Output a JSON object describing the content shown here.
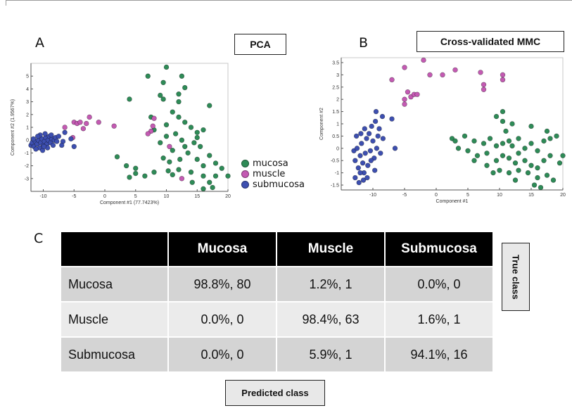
{
  "panels": {
    "a": {
      "letter": "A",
      "title": "PCA"
    },
    "b": {
      "letter": "B",
      "title": "Cross-validated MMC"
    },
    "c": {
      "letter": "C"
    }
  },
  "legend": [
    {
      "label": "mucosa",
      "color": "#2e8b57"
    },
    {
      "label": "muscle",
      "color": "#c45ab3"
    },
    {
      "label": "submucosa",
      "color": "#3d4fb0"
    }
  ],
  "colors": {
    "mucosa": "#2e8b57",
    "muscle": "#c45ab3",
    "submucosa": "#3d4fb0"
  },
  "chart_data": [
    {
      "type": "scatter",
      "title": "PCA",
      "xlabel": "Component #1 (77.7423%)",
      "ylabel": "Component #2 (1.9567%)",
      "xlim": [
        -12,
        20
      ],
      "ylim": [
        -4,
        6
      ],
      "xticks": [
        -10,
        -5,
        0,
        5,
        10,
        15,
        20
      ],
      "yticks": [
        -3,
        -2,
        -1,
        0,
        1,
        2,
        3,
        4,
        5
      ],
      "series": [
        {
          "name": "mucosa",
          "points": [
            [
              7,
              5
            ],
            [
              10,
              5.7
            ],
            [
              9.5,
              4.5
            ],
            [
              12.5,
              5
            ],
            [
              9,
              3.5
            ],
            [
              9.5,
              3.2
            ],
            [
              12,
              3.6
            ],
            [
              13,
              4.1
            ],
            [
              12,
              3
            ],
            [
              4,
              3.2
            ],
            [
              7.5,
              1.8
            ],
            [
              10,
              1.2
            ],
            [
              11,
              2.2
            ],
            [
              12,
              1.8
            ],
            [
              13,
              1.4
            ],
            [
              14,
              1
            ],
            [
              15,
              0.6
            ],
            [
              16,
              0.8
            ],
            [
              17,
              2.7
            ],
            [
              10,
              0.3
            ],
            [
              11.5,
              0.5
            ],
            [
              12.5,
              0
            ],
            [
              14.5,
              -0.2
            ],
            [
              15,
              0.2
            ],
            [
              15.5,
              -0.5
            ],
            [
              13,
              -0.5
            ],
            [
              8,
              0.8
            ],
            [
              9,
              -0.2
            ],
            [
              11,
              -0.8
            ],
            [
              13.5,
              -1
            ],
            [
              15,
              -1.5
            ],
            [
              17,
              -1.2
            ],
            [
              18,
              -1.8
            ],
            [
              16,
              -2
            ],
            [
              19,
              -2.2
            ],
            [
              2,
              -1.3
            ],
            [
              3.5,
              -2
            ],
            [
              5,
              -2.6
            ],
            [
              6.5,
              -2.8
            ],
            [
              5,
              -2.2
            ],
            [
              8,
              -2.5
            ],
            [
              11,
              -2.7
            ],
            [
              12,
              -2.3
            ],
            [
              14,
              -2.5
            ],
            [
              16,
              -2.8
            ],
            [
              17,
              -3.3
            ],
            [
              17.5,
              -3.7
            ],
            [
              16,
              -3.8
            ],
            [
              18,
              -2.8
            ],
            [
              20,
              -2.8
            ],
            [
              4,
              -2.9
            ],
            [
              9.5,
              -1.4
            ],
            [
              10.5,
              -1.7
            ],
            [
              14.2,
              -3.3
            ],
            [
              12.2,
              -1.5
            ],
            [
              10.3,
              -2.4
            ]
          ]
        },
        {
          "name": "muscle",
          "points": [
            [
              -5,
              1.4
            ],
            [
              -4.5,
              1.3
            ],
            [
              -4,
              1.4
            ],
            [
              -3,
              1.3
            ],
            [
              -3.5,
              0.9
            ],
            [
              -2.5,
              1.8
            ],
            [
              -1,
              1.4
            ],
            [
              1.5,
              1.1
            ],
            [
              -6.5,
              1
            ],
            [
              -5.2,
              0.2
            ],
            [
              7.5,
              0.7
            ],
            [
              8,
              1.7
            ],
            [
              7.8,
              1.1
            ],
            [
              7,
              0.5
            ],
            [
              10.5,
              -0.5
            ],
            [
              12.5,
              -3
            ]
          ]
        },
        {
          "name": "submucosa",
          "points": [
            [
              -12,
              -0.4
            ],
            [
              -11.8,
              -0.2
            ],
            [
              -11.5,
              -0.5
            ],
            [
              -11.3,
              -0.1
            ],
            [
              -11,
              -0.3
            ],
            [
              -10.8,
              0
            ],
            [
              -10.6,
              -0.6
            ],
            [
              -10.4,
              -0.2
            ],
            [
              -10.2,
              0.1
            ],
            [
              -10,
              -0.4
            ],
            [
              -9.8,
              -0.1
            ],
            [
              -9.6,
              0.2
            ],
            [
              -9.4,
              -0.3
            ],
            [
              -9.2,
              0
            ],
            [
              -9,
              0.3
            ],
            [
              -8.8,
              -0.2
            ],
            [
              -8.6,
              0.1
            ],
            [
              -8.4,
              -0.4
            ],
            [
              -8.2,
              0
            ],
            [
              -8,
              0.2
            ],
            [
              -7.8,
              -0.1
            ],
            [
              -10.5,
              0.4
            ],
            [
              -9.7,
              0.5
            ],
            [
              -11.2,
              -0.7
            ],
            [
              -10.1,
              -0.8
            ],
            [
              -9.3,
              -0.6
            ],
            [
              -8.7,
              0.4
            ],
            [
              -7.5,
              0.3
            ],
            [
              -6.8,
              -0.1
            ],
            [
              -6.5,
              0.6
            ],
            [
              -5.5,
              0.1
            ],
            [
              -5,
              -0.5
            ],
            [
              -7,
              -0.4
            ],
            [
              -11.6,
              0.1
            ],
            [
              -10.9,
              0.3
            ],
            [
              -9.9,
              -0.5
            ]
          ]
        }
      ]
    },
    {
      "type": "scatter",
      "title": "Cross-validated MMC",
      "xlabel": "Component #1",
      "ylabel": "Component #2",
      "xlim": [
        -15,
        20
      ],
      "ylim": [
        -1.7,
        3.7
      ],
      "xticks": [
        -10,
        -5,
        0,
        5,
        10,
        15,
        20
      ],
      "yticks": [
        -1.5,
        -1,
        -0.5,
        0,
        0.5,
        1,
        1.5,
        2,
        2.5,
        3,
        3.5
      ],
      "series": [
        {
          "name": "mucosa",
          "points": [
            [
              10.5,
              1.5
            ],
            [
              9.5,
              1.3
            ],
            [
              10.5,
              1.1
            ],
            [
              12,
              1
            ],
            [
              11,
              0.7
            ],
            [
              15,
              0.9
            ],
            [
              17.5,
              0.7
            ],
            [
              18,
              0.4
            ],
            [
              19,
              0.5
            ],
            [
              2.5,
              0.4
            ],
            [
              4.5,
              0.5
            ],
            [
              6,
              0.3
            ],
            [
              7.5,
              0.2
            ],
            [
              8.5,
              0.4
            ],
            [
              9.5,
              0.1
            ],
            [
              10.5,
              0.2
            ],
            [
              11.5,
              0.3
            ],
            [
              12,
              0.1
            ],
            [
              13,
              0.4
            ],
            [
              14,
              0
            ],
            [
              15,
              0.2
            ],
            [
              16,
              -0.1
            ],
            [
              17,
              0.3
            ],
            [
              3.5,
              0
            ],
            [
              5,
              -0.1
            ],
            [
              6.5,
              -0.3
            ],
            [
              8,
              -0.2
            ],
            [
              9.5,
              -0.5
            ],
            [
              10.5,
              -0.3
            ],
            [
              11.5,
              -0.4
            ],
            [
              12.5,
              -0.6
            ],
            [
              13,
              -0.2
            ],
            [
              14,
              -0.5
            ],
            [
              15,
              -0.7
            ],
            [
              16,
              -0.8
            ],
            [
              17,
              -0.5
            ],
            [
              18,
              -0.3
            ],
            [
              19.5,
              -0.6
            ],
            [
              20,
              -0.3
            ],
            [
              8,
              -0.7
            ],
            [
              10,
              -0.9
            ],
            [
              11.5,
              -1
            ],
            [
              13,
              -0.9
            ],
            [
              14.5,
              -1
            ],
            [
              16,
              -1.2
            ],
            [
              17.5,
              -1.1
            ],
            [
              18.5,
              -1.3
            ],
            [
              12.5,
              -1.3
            ],
            [
              15.5,
              -1.5
            ],
            [
              16.5,
              -1.6
            ],
            [
              9,
              -1
            ],
            [
              6,
              -0.5
            ],
            [
              3,
              0.3
            ]
          ]
        },
        {
          "name": "muscle",
          "points": [
            [
              -7,
              2.8
            ],
            [
              -5,
              3.3
            ],
            [
              -4.5,
              2.3
            ],
            [
              -4,
              2.1
            ],
            [
              -3.5,
              2.2
            ],
            [
              -3,
              2.2
            ],
            [
              -5,
              2
            ],
            [
              -5,
              1.8
            ],
            [
              -2,
              3.6
            ],
            [
              -1,
              3
            ],
            [
              1,
              3
            ],
            [
              3,
              3.2
            ],
            [
              7,
              3.1
            ],
            [
              7.5,
              2.6
            ],
            [
              7.5,
              2.4
            ],
            [
              10.5,
              3
            ],
            [
              10.5,
              2.8
            ]
          ]
        },
        {
          "name": "submucosa",
          "points": [
            [
              -13,
              -0.1
            ],
            [
              -12.8,
              -0.5
            ],
            [
              -12.5,
              0
            ],
            [
              -12.3,
              -0.8
            ],
            [
              -12,
              -0.3
            ],
            [
              -11.8,
              0.2
            ],
            [
              -11.6,
              -0.6
            ],
            [
              -11.4,
              -1
            ],
            [
              -11.2,
              -0.2
            ],
            [
              -11,
              0.4
            ],
            [
              -10.8,
              -0.7
            ],
            [
              -10.6,
              0.6
            ],
            [
              -10.4,
              -0.1
            ],
            [
              -10.2,
              0.9
            ],
            [
              -10,
              0.3
            ],
            [
              -9.8,
              -0.4
            ],
            [
              -9.6,
              1.1
            ],
            [
              -9.4,
              0
            ],
            [
              -9.2,
              0.5
            ],
            [
              -9,
              0.8
            ],
            [
              -8.8,
              -0.2
            ],
            [
              -11.5,
              -1.3
            ],
            [
              -12.2,
              -1.4
            ],
            [
              -12.8,
              -1.2
            ],
            [
              -10.9,
              -1.2
            ],
            [
              -8.5,
              1.3
            ],
            [
              -9.7,
              -0.9
            ],
            [
              -11.9,
              0.6
            ],
            [
              -12.6,
              0.5
            ],
            [
              -10.3,
              -0.5
            ],
            [
              -8.4,
              0.4
            ],
            [
              -7,
              1.2
            ],
            [
              -6.5,
              0
            ],
            [
              -9.5,
              1.5
            ],
            [
              -12,
              -1
            ],
            [
              -11.3,
              0.8
            ]
          ]
        }
      ]
    },
    {
      "type": "table",
      "columns": [
        "",
        "Mucosa",
        "Muscle",
        "Submucosa"
      ],
      "rows": [
        {
          "label": "Mucosa",
          "cells": [
            "98.8%, 80",
            "1.2%, 1",
            "0.0%, 0"
          ]
        },
        {
          "label": "Muscle",
          "cells": [
            "0.0%, 0",
            "98.4%, 63",
            "1.6%, 1"
          ]
        },
        {
          "label": "Submucosa",
          "cells": [
            "0.0%, 0",
            "5.9%, 1",
            "94.1%, 16"
          ]
        }
      ],
      "row_axis_label": "True class",
      "column_axis_label": "Predicted class"
    }
  ]
}
